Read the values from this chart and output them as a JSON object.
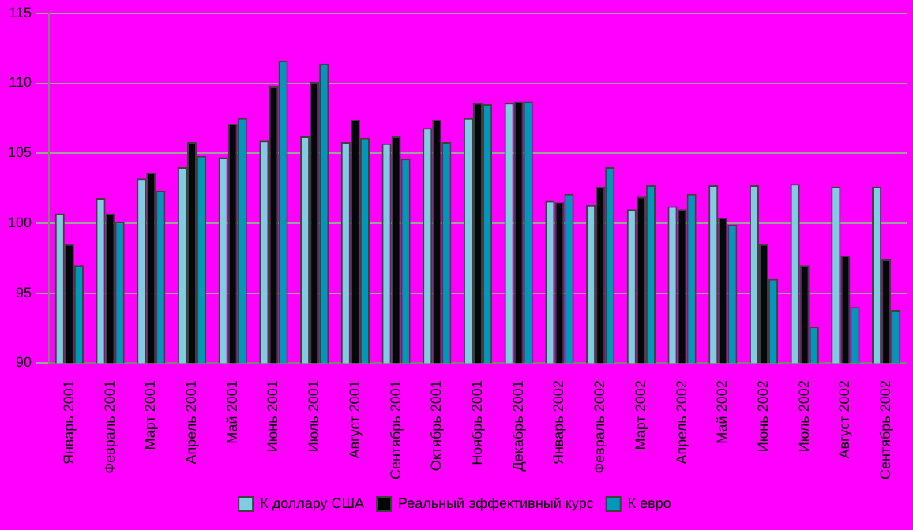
{
  "chart_data": {
    "type": "bar",
    "categories": [
      "Январь 2001",
      "Февраль 2001",
      "Март 2001",
      "Апрель 2001",
      "Май 2001",
      "Июнь 2001",
      "Июль 2001",
      "Август 2001",
      "Сентябрь 2001",
      "Октябрь 2001",
      "Ноябрь 2001",
      "Декабрь 2001",
      "Январь 2002",
      "Февраль 2002",
      "Март 2002",
      "Апрель 2002",
      "Май 2002",
      "Июнь 2002",
      "Июль 2002",
      "Август 2002",
      "Сентябрь 2002"
    ],
    "series": [
      {
        "name": "К доллару США",
        "color": "#80cce0",
        "values": [
          100.7,
          101.8,
          103.2,
          104.0,
          104.7,
          105.9,
          106.2,
          105.8,
          105.7,
          106.8,
          107.5,
          108.6,
          101.6,
          101.3,
          101.0,
          101.2,
          102.7,
          102.7,
          102.8,
          102.6,
          102.6
        ]
      },
      {
        "name": "Реальный эффективный курс",
        "color": "#000808",
        "values": [
          98.5,
          100.7,
          103.6,
          105.8,
          107.1,
          109.8,
          110.1,
          107.4,
          106.2,
          107.4,
          108.6,
          108.7,
          101.5,
          102.6,
          101.9,
          101.0,
          100.4,
          98.5,
          97.0,
          97.7,
          97.4
        ]
      },
      {
        "name": "К евро",
        "color": "#0098b8",
        "values": [
          97.0,
          100.1,
          102.3,
          104.8,
          107.5,
          111.6,
          111.4,
          106.1,
          104.6,
          105.8,
          108.5,
          108.7,
          102.1,
          104.0,
          102.7,
          102.1,
          99.9,
          96.0,
          92.6,
          94.0,
          93.8
        ]
      }
    ],
    "ylim": [
      90,
      115
    ],
    "yticks": [
      90,
      95,
      100,
      105,
      110,
      115
    ],
    "grid": "y",
    "legend": "bottom"
  }
}
